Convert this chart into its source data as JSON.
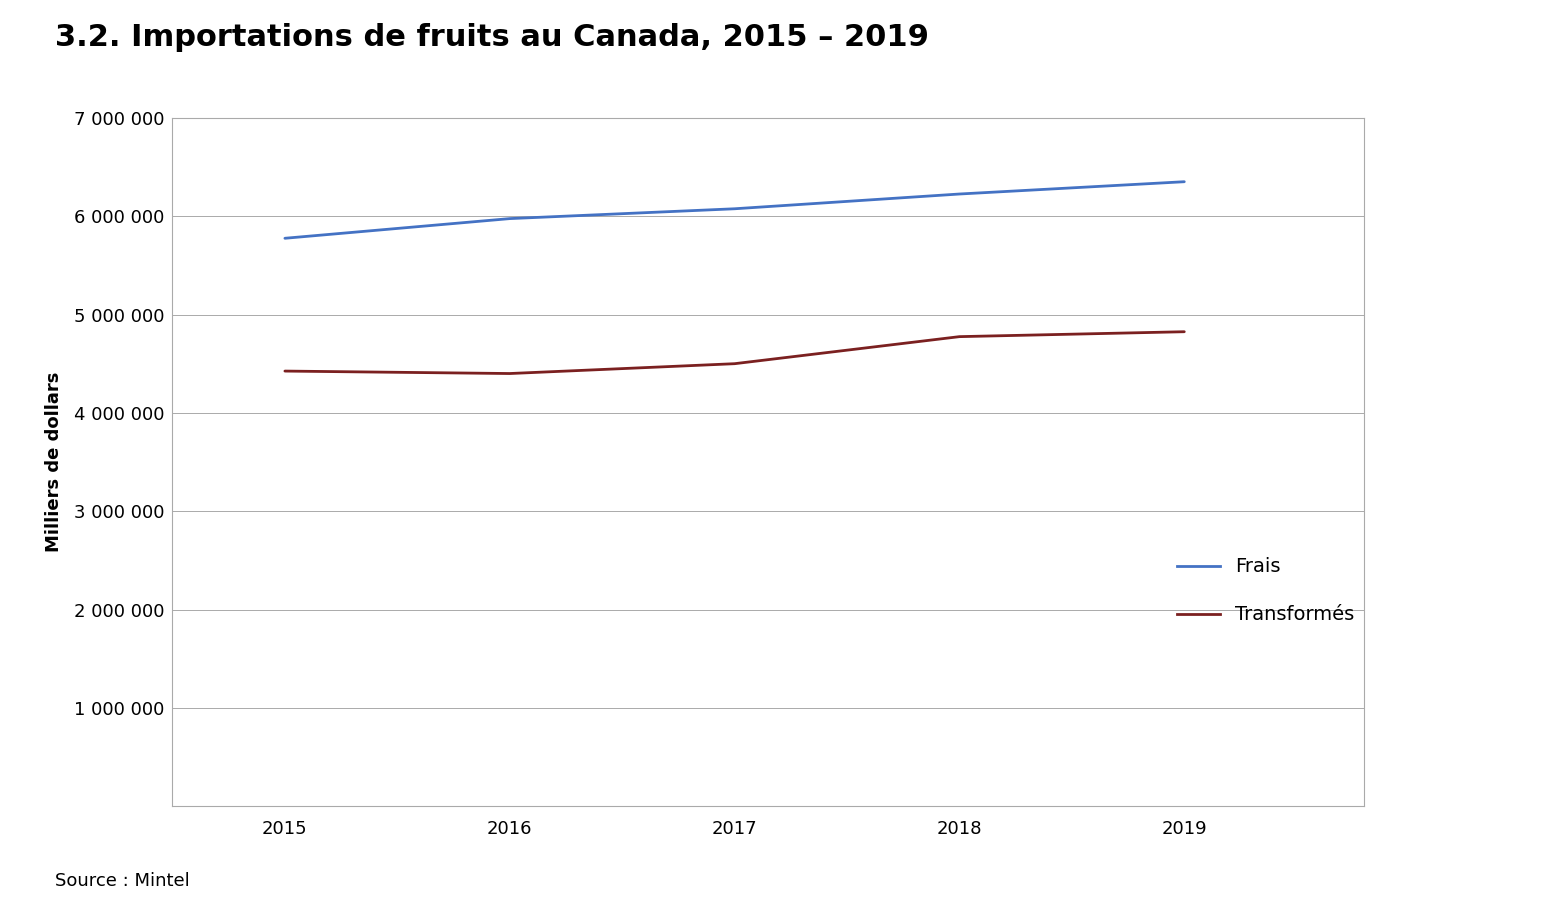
{
  "title": "3.2. Importations de fruits au Canada, 2015 – 2019",
  "ylabel": "Milliers de dollars",
  "source": "Source : Mintel",
  "years": [
    2015,
    2016,
    2017,
    2018,
    2019
  ],
  "frais": [
    5775000,
    5975000,
    6075000,
    6225000,
    6350000
  ],
  "transformes": [
    4425000,
    4400000,
    4500000,
    4775000,
    4825000
  ],
  "frais_color": "#4472C4",
  "transformes_color": "#7B2020",
  "ylim": [
    0,
    7000000
  ],
  "yticks": [
    1000000,
    2000000,
    3000000,
    4000000,
    5000000,
    6000000,
    7000000
  ],
  "legend_labels": [
    "Frais",
    "Transformés"
  ],
  "background_color": "#ffffff",
  "plot_bg_color": "#ffffff",
  "grid_color": "#aaaaaa",
  "border_color": "#aaaaaa",
  "title_fontsize": 22,
  "axis_label_fontsize": 13,
  "tick_fontsize": 13,
  "legend_fontsize": 14,
  "source_fontsize": 13,
  "line_width": 2.0
}
